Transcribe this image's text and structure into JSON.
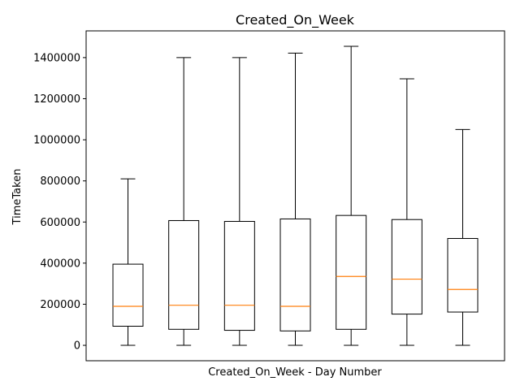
{
  "chart_data": {
    "type": "box",
    "title": "Created_On_Week",
    "xlabel": "Created_On_Week - Day Number",
    "ylabel": "TimeTaken",
    "ylim": [
      -75000,
      1530000
    ],
    "yticks": [
      0,
      200000,
      400000,
      600000,
      800000,
      1000000,
      1200000,
      1400000
    ],
    "x_tick_labels_visible": false,
    "grid": false,
    "colors": {
      "box": "#000000",
      "whisker": "#000000",
      "median": "#ff7f0e"
    },
    "boxes": [
      {
        "min": 0,
        "q1": 93000,
        "median": 190000,
        "q3": 395000,
        "max": 810000
      },
      {
        "min": 0,
        "q1": 78000,
        "median": 195000,
        "q3": 607000,
        "max": 1400000
      },
      {
        "min": 0,
        "q1": 73000,
        "median": 195000,
        "q3": 603000,
        "max": 1400000
      },
      {
        "min": 0,
        "q1": 70000,
        "median": 190000,
        "q3": 615000,
        "max": 1422000
      },
      {
        "min": 0,
        "q1": 78000,
        "median": 335000,
        "q3": 632000,
        "max": 1455000
      },
      {
        "min": 0,
        "q1": 152000,
        "median": 322000,
        "q3": 612000,
        "max": 1297000
      },
      {
        "min": 0,
        "q1": 162000,
        "median": 272000,
        "q3": 520000,
        "max": 1050000
      }
    ]
  }
}
